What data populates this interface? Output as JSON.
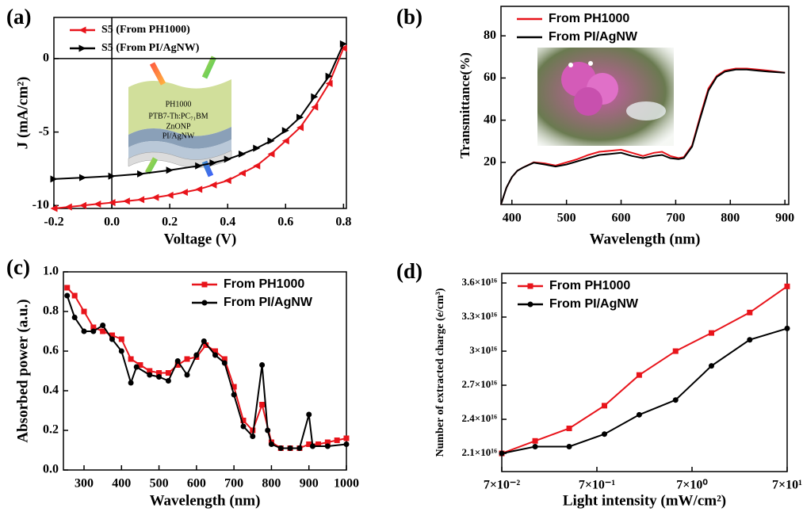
{
  "chart_data": [
    {
      "type": "line",
      "label": "(a)",
      "xlabel": "Voltage (V)",
      "ylabel": "J (mA/cm²)",
      "xlim": [
        -0.2,
        0.81
      ],
      "ylim": [
        -10.2,
        2.8
      ],
      "xticks": [
        -0.2,
        {
          "value": 0,
          "label": "0.0"
        },
        0.2,
        0.4,
        0.6,
        0.8
      ],
      "yticks": [
        -10,
        -5,
        0
      ],
      "zero_lines": true,
      "legend": "upper left",
      "inset_labels": [
        "PH1000",
        "PTB7-Th:PC₇₁BM",
        "ZnONP",
        "PI/AgNW"
      ],
      "series": [
        {
          "name": "S5 (From PH1000)",
          "color": "#e8141b",
          "marker": "tri-left",
          "x": [
            -0.2,
            -0.15,
            -0.1,
            -0.05,
            0,
            0.05,
            0.1,
            0.15,
            0.2,
            0.25,
            0.3,
            0.35,
            0.4,
            0.45,
            0.5,
            0.55,
            0.6,
            0.65,
            0.7,
            0.75,
            0.8
          ],
          "values": [
            -10.2,
            -10.1,
            -10.0,
            -9.9,
            -9.8,
            -9.7,
            -9.6,
            -9.45,
            -9.3,
            -9.1,
            -8.9,
            -8.6,
            -8.3,
            -7.8,
            -7.3,
            -6.5,
            -5.6,
            -4.7,
            -3.3,
            -1.7,
            0.7
          ]
        },
        {
          "name": "S5 (From PI/AgNW)",
          "color": "#000000",
          "marker": "tri-right",
          "x": [
            -0.2,
            -0.1,
            0,
            0.1,
            0.2,
            0.3,
            0.35,
            0.4,
            0.45,
            0.5,
            0.55,
            0.6,
            0.65,
            0.7,
            0.75,
            0.8
          ],
          "values": [
            -8.2,
            -8.1,
            -8.0,
            -7.85,
            -7.6,
            -7.3,
            -7.1,
            -6.85,
            -6.5,
            -6.1,
            -5.6,
            -4.9,
            -4.0,
            -2.6,
            -1.2,
            1.0
          ]
        }
      ]
    },
    {
      "type": "line",
      "label": "(b)",
      "xlabel": "Wavelength (nm)",
      "ylabel": "Transmittance(%)",
      "xlim": [
        380,
        907
      ],
      "ylim": [
        0,
        94
      ],
      "xticks": [
        400,
        500,
        600,
        700,
        800,
        900
      ],
      "yticks": [
        20,
        40,
        60,
        80
      ],
      "legend": "upper left",
      "series": [
        {
          "name": "From PH1000",
          "color": "#e8141b",
          "marker": "none",
          "x": [
            380,
            390,
            400,
            410,
            420,
            440,
            460,
            480,
            500,
            520,
            540,
            560,
            580,
            600,
            620,
            640,
            660,
            675,
            690,
            705,
            715,
            730,
            745,
            760,
            775,
            790,
            810,
            830,
            850,
            870,
            900
          ],
          "values": [
            0,
            8,
            13,
            16,
            17.5,
            20,
            19.5,
            18.5,
            20,
            21.5,
            23.5,
            25,
            25.5,
            26,
            24.5,
            23,
            24.5,
            25,
            23,
            22,
            22.5,
            28,
            42,
            55,
            61,
            63.5,
            64.5,
            64.5,
            64,
            63.5,
            62.5
          ]
        },
        {
          "name": "From PI/AgNW",
          "color": "#000000",
          "marker": "none",
          "x": [
            380,
            390,
            400,
            410,
            420,
            440,
            460,
            480,
            500,
            520,
            540,
            560,
            580,
            600,
            620,
            640,
            660,
            675,
            690,
            705,
            715,
            730,
            745,
            760,
            775,
            790,
            810,
            830,
            850,
            870,
            900
          ],
          "values": [
            0,
            8,
            13,
            16,
            17.5,
            19.8,
            19,
            18,
            19,
            20.5,
            22,
            23.5,
            24,
            24.5,
            23,
            22,
            23,
            23.5,
            22,
            21.5,
            22,
            27.5,
            41,
            54,
            60.5,
            63,
            64,
            64,
            63.5,
            63,
            62.5
          ]
        }
      ]
    },
    {
      "type": "line",
      "label": "(c)",
      "xlabel": "Wavelength (nm)",
      "ylabel": "Absorbed power (a.u.)",
      "xlim": [
        245,
        1000
      ],
      "ylim": [
        0,
        1
      ],
      "xticks": [
        300,
        400,
        500,
        600,
        700,
        800,
        900,
        1000
      ],
      "yticks": [
        {
          "value": 0,
          "label": "0.0"
        },
        0.2,
        0.4,
        0.6,
        0.8,
        {
          "value": 1,
          "label": "1.0"
        }
      ],
      "legend": "upper right",
      "series": [
        {
          "name": "From PH1000",
          "color": "#e8141b",
          "marker": "square",
          "x": [
            255,
            275,
            300,
            325,
            350,
            375,
            400,
            425,
            450,
            475,
            500,
            525,
            550,
            575,
            600,
            625,
            650,
            675,
            700,
            725,
            750,
            775,
            800,
            825,
            850,
            875,
            900,
            925,
            950,
            975,
            1000
          ],
          "values": [
            0.92,
            0.88,
            0.8,
            0.72,
            0.7,
            0.68,
            0.66,
            0.56,
            0.53,
            0.5,
            0.49,
            0.49,
            0.53,
            0.56,
            0.57,
            0.63,
            0.6,
            0.56,
            0.42,
            0.25,
            0.2,
            0.33,
            0.14,
            0.11,
            0.11,
            0.11,
            0.13,
            0.13,
            0.14,
            0.15,
            0.16
          ]
        },
        {
          "name": "From PI/AgNW",
          "color": "#000000",
          "marker": "circle",
          "x": [
            255,
            275,
            300,
            325,
            350,
            375,
            400,
            425,
            440,
            475,
            500,
            525,
            550,
            575,
            600,
            620,
            650,
            675,
            700,
            725,
            750,
            775,
            790,
            800,
            825,
            850,
            875,
            900,
            910,
            950,
            1000
          ],
          "values": [
            0.88,
            0.77,
            0.7,
            0.7,
            0.73,
            0.66,
            0.6,
            0.44,
            0.52,
            0.48,
            0.47,
            0.45,
            0.55,
            0.48,
            0.58,
            0.65,
            0.58,
            0.54,
            0.38,
            0.22,
            0.17,
            0.53,
            0.2,
            0.13,
            0.11,
            0.11,
            0.11,
            0.28,
            0.12,
            0.12,
            0.13
          ]
        }
      ]
    },
    {
      "type": "line",
      "label": "(d)",
      "xlabel": "Light intensity (mW/cm²)",
      "ylabel": "Number of extracted charge (e/cm³)",
      "xscale": "log",
      "xlim": [
        0.07,
        70
      ],
      "ylim": [
        1.94e+16,
        3.684e+16
      ],
      "xticks": [
        {
          "value": 0.07,
          "label": "7×10⁻²"
        },
        {
          "value": 0.7,
          "label": "7×10⁻¹"
        },
        {
          "value": 7,
          "label": "7×10⁰"
        },
        {
          "value": 70,
          "label": "7×10¹"
        }
      ],
      "yticks": [
        {
          "value": 2.1e+16,
          "label": "2.1×10¹⁶"
        },
        {
          "value": 2.4e+16,
          "label": "2.4×10¹⁶"
        },
        {
          "value": 2.7e+16,
          "label": "2.7×10¹⁶"
        },
        {
          "value": 3e+16,
          "label": "3×10¹⁶"
        },
        {
          "value": 3.3e+16,
          "label": "3.3×10¹⁶"
        },
        {
          "value": 3.6e+16,
          "label": "3.6×10¹⁶"
        }
      ],
      "legend": "upper left",
      "series": [
        {
          "name": "From PH1000",
          "color": "#e8141b",
          "marker": "square",
          "x": [
            0.07,
            0.157,
            0.358,
            0.84,
            1.95,
            4.7,
            11.2,
            28.3,
            70
          ],
          "values": [
            2.1e+16,
            2.21e+16,
            2.32e+16,
            2.52e+16,
            2.79e+16,
            3e+16,
            3.16e+16,
            3.34e+16,
            3.57e+16
          ]
        },
        {
          "name": "From PI/AgNW",
          "color": "#000000",
          "marker": "circle",
          "x": [
            0.07,
            0.157,
            0.358,
            0.84,
            1.95,
            4.7,
            11.2,
            28.3,
            70
          ],
          "values": [
            2.1e+16,
            2.16e+16,
            2.16e+16,
            2.27e+16,
            2.44e+16,
            2.57e+16,
            2.87e+16,
            3.1e+16,
            3.2e+16
          ]
        }
      ]
    }
  ]
}
